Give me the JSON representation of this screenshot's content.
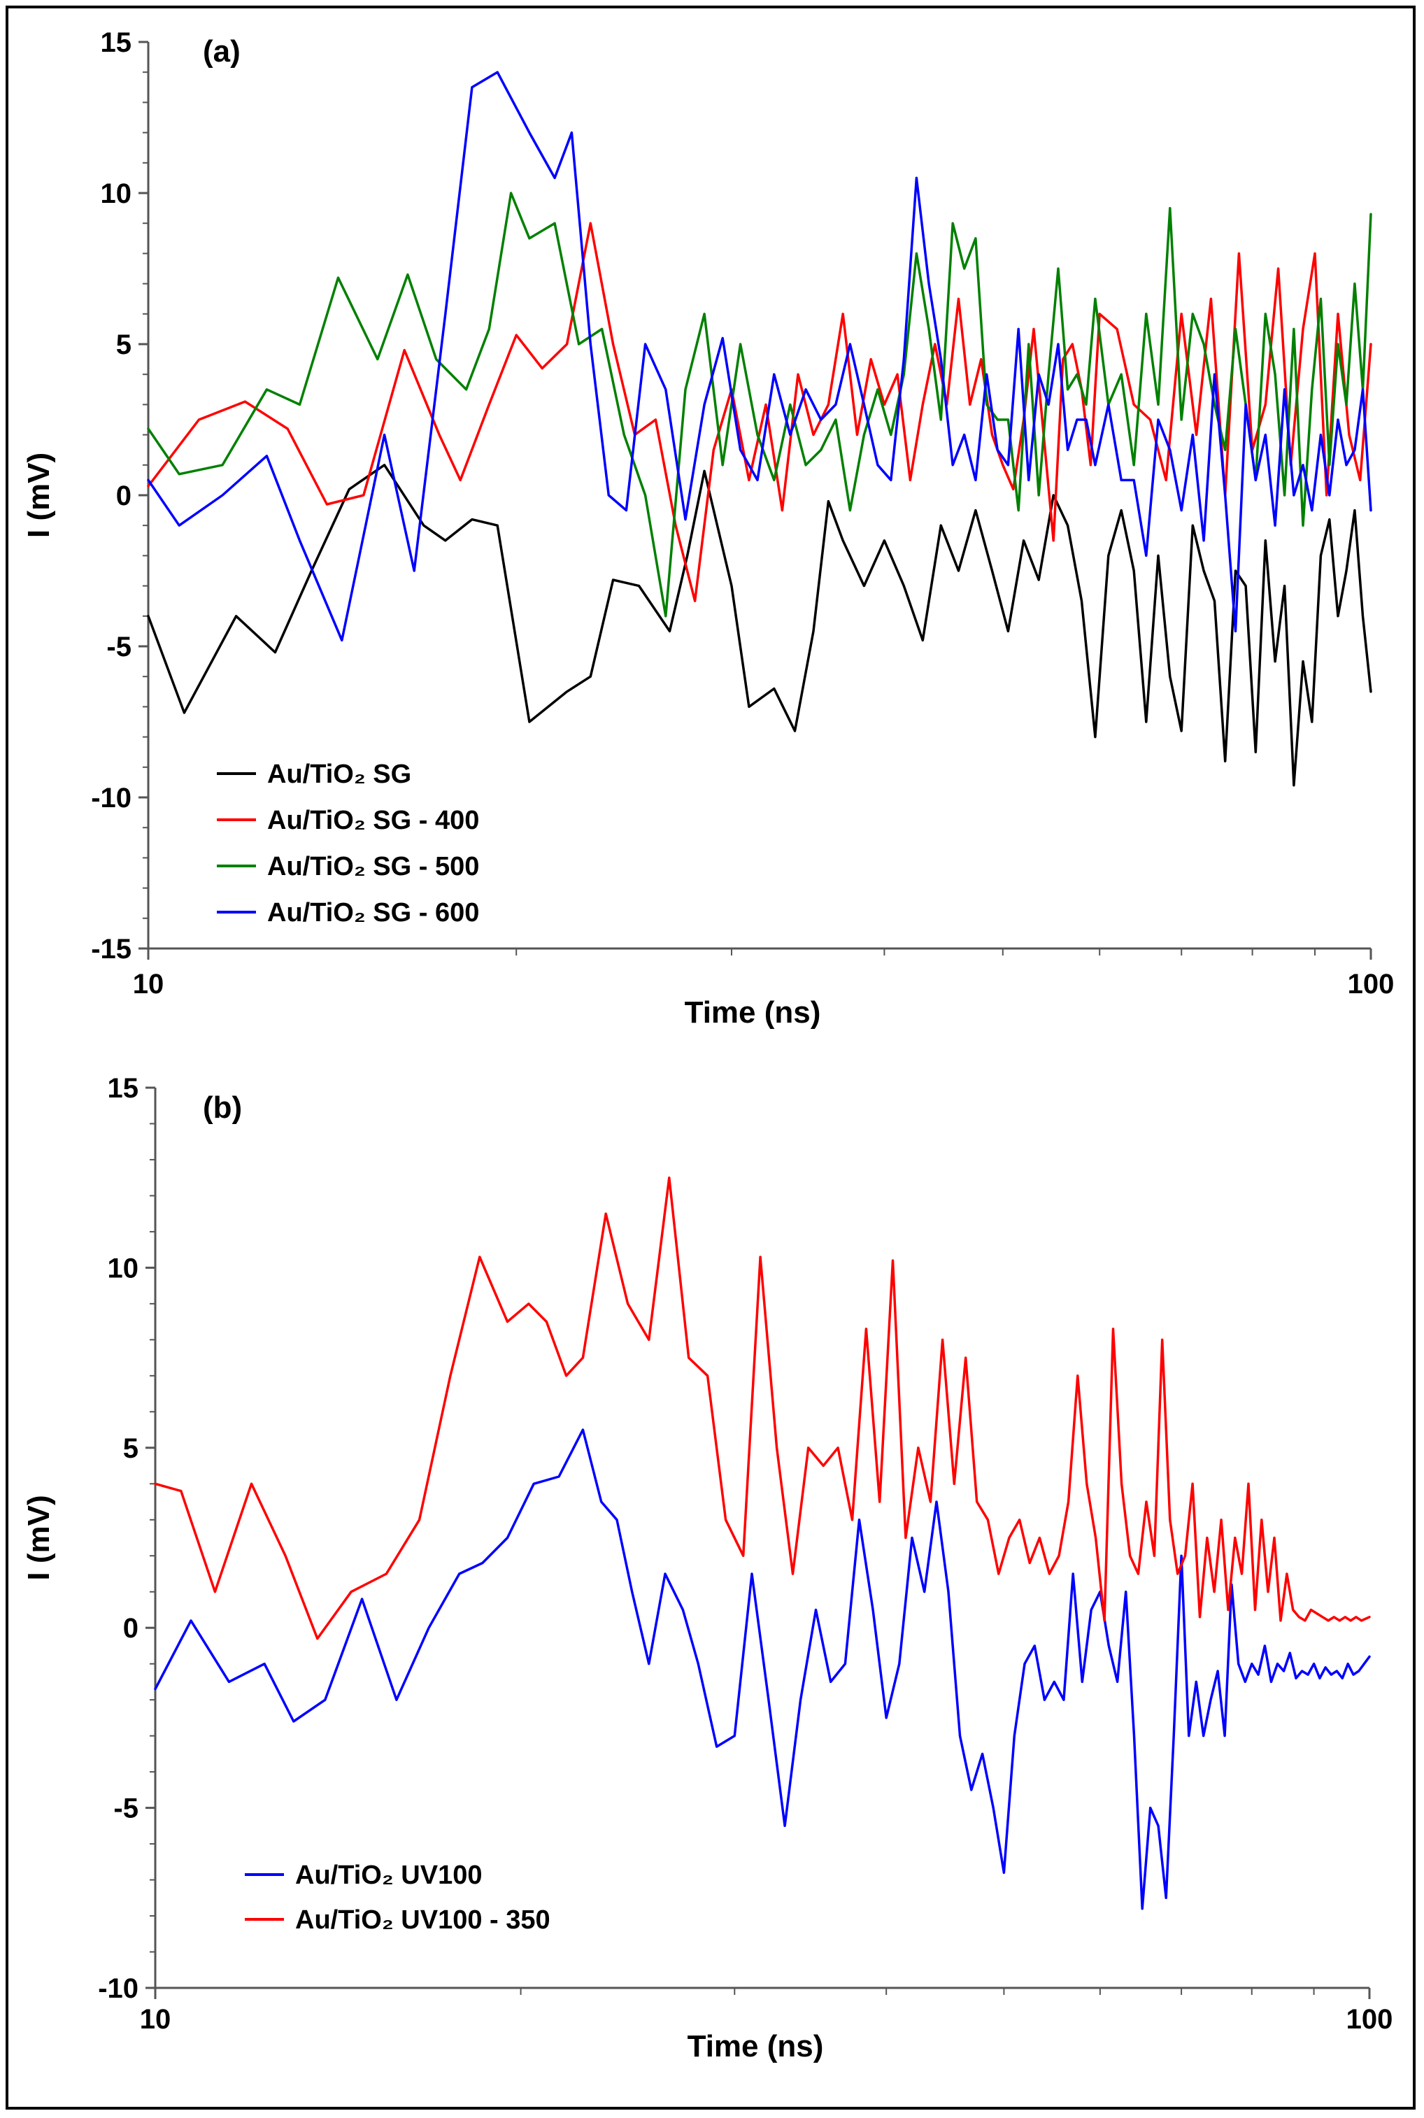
{
  "chart_data": [
    {
      "type": "line",
      "panel_label": "(a)",
      "xlabel": "Time (ns)",
      "ylabel": "I (mV)",
      "xscale": "log",
      "xlim": [
        10,
        100
      ],
      "ylim": [
        -15,
        15
      ],
      "yticks": [
        15,
        10,
        5,
        0,
        -5,
        -10,
        -15
      ],
      "ytick_labels": [
        "15",
        "10",
        "5",
        "0",
        "-5",
        "-10",
        "-15"
      ],
      "xtick_labels": [
        "10",
        "100"
      ],
      "legend_position": "bottom-left",
      "series": [
        {
          "name": "Au/TiO₂ SG",
          "color": "#000000",
          "x": [
            10,
            10.7,
            11.8,
            12.7,
            13.6,
            14.6,
            15.6,
            16.8,
            17.5,
            18.4,
            19.3,
            20.5,
            22.0,
            23.0,
            24.0,
            25.2,
            26.7,
            27.6,
            28.5,
            30.0,
            31.0,
            32.5,
            33.8,
            35.0,
            36.0,
            37.0,
            38.5,
            40.0,
            41.5,
            43.0,
            44.5,
            46.0,
            47.5,
            49.0,
            50.5,
            52.0,
            53.5,
            55.0,
            56.5,
            58.0,
            59.5,
            61.0,
            62.5,
            64.0,
            65.5,
            67.0,
            68.5,
            70.0,
            71.5,
            73.0,
            74.5,
            76.0,
            77.5,
            79.0,
            80.5,
            82.0,
            83.5,
            85.0,
            86.5,
            88.0,
            89.5,
            91.0,
            92.5,
            94.0,
            95.5,
            97.0,
            98.5,
            100
          ],
          "values": [
            -4,
            -7.2,
            -4.0,
            -5.2,
            -2.5,
            0.2,
            1.0,
            -1.0,
            -1.5,
            -0.8,
            -1.0,
            -7.5,
            -6.5,
            -6.0,
            -2.8,
            -3.0,
            -4.5,
            -2.0,
            0.8,
            -3.0,
            -7.0,
            -6.4,
            -7.8,
            -4.5,
            -0.2,
            -1.5,
            -3.0,
            -1.5,
            -3.0,
            -4.8,
            -1.0,
            -2.5,
            -0.5,
            -2.5,
            -4.5,
            -1.5,
            -2.8,
            0.0,
            -1.0,
            -3.5,
            -8.0,
            -2.0,
            -0.5,
            -2.5,
            -7.5,
            -2.0,
            -6.0,
            -7.8,
            -1.0,
            -2.5,
            -3.5,
            -8.8,
            -2.5,
            -3.0,
            -8.5,
            -1.5,
            -5.5,
            -3.0,
            -9.6,
            -5.5,
            -7.5,
            -2.0,
            -0.8,
            -4.0,
            -2.5,
            -0.5,
            -4.0,
            -6.5
          ]
        },
        {
          "name": "Au/TiO₂ SG - 400",
          "color": "#ff0000",
          "x": [
            10,
            11.0,
            12.0,
            13.0,
            14.0,
            15.0,
            16.2,
            17.3,
            18.0,
            19.0,
            20.0,
            21.0,
            22.0,
            23.0,
            24.0,
            25.0,
            26.0,
            27.0,
            28.0,
            29.0,
            30.0,
            31.0,
            32.0,
            33.0,
            34.0,
            35.0,
            36.0,
            37.0,
            38.0,
            39.0,
            40.0,
            41.0,
            42.0,
            43.0,
            44.0,
            45.0,
            46.0,
            47.0,
            48.0,
            49.0,
            50.0,
            51.0,
            52.0,
            53.0,
            54.0,
            55.0,
            56.0,
            57.0,
            58.0,
            59.0,
            60.0,
            62.0,
            64.0,
            66.0,
            68.0,
            70.0,
            72.0,
            74.0,
            76.0,
            78.0,
            80.0,
            82.0,
            84.0,
            86.0,
            88.0,
            90.0,
            92.0,
            94.0,
            96.0,
            98.0,
            100
          ],
          "values": [
            0.3,
            2.5,
            3.1,
            2.2,
            -0.3,
            0.0,
            4.8,
            2.0,
            0.5,
            3.0,
            5.3,
            4.2,
            5.0,
            9.0,
            5.0,
            2.0,
            2.5,
            -1.0,
            -3.5,
            1.5,
            3.5,
            0.5,
            3.0,
            -0.5,
            4.0,
            2.0,
            3.0,
            6.0,
            2.0,
            4.5,
            3.0,
            4.0,
            0.5,
            3.0,
            5.0,
            3.0,
            6.5,
            3.0,
            4.5,
            2.0,
            1.0,
            0.2,
            2.5,
            5.5,
            2.0,
            -1.5,
            4.5,
            5.0,
            3.5,
            1.0,
            6.0,
            5.5,
            3.0,
            2.5,
            0.5,
            6.0,
            2.0,
            6.5,
            0.0,
            8.0,
            1.5,
            3.0,
            7.5,
            1.0,
            5.5,
            8.0,
            0.0,
            6.0,
            2.0,
            0.5,
            5.0
          ]
        },
        {
          "name": "Au/TiO₂ SG - 500",
          "color": "#008000",
          "x": [
            10,
            10.6,
            11.5,
            12.5,
            13.3,
            14.3,
            15.4,
            16.3,
            17.2,
            18.2,
            19.0,
            19.8,
            20.5,
            21.5,
            22.5,
            23.5,
            24.5,
            25.5,
            26.5,
            27.5,
            28.5,
            29.5,
            30.5,
            31.5,
            32.5,
            33.5,
            34.5,
            35.5,
            36.5,
            37.5,
            38.5,
            39.5,
            40.5,
            41.5,
            42.5,
            43.5,
            44.5,
            45.5,
            46.5,
            47.5,
            48.5,
            49.5,
            50.5,
            51.5,
            52.5,
            53.5,
            54.5,
            55.5,
            56.5,
            57.5,
            58.5,
            59.5,
            61.0,
            62.5,
            64.0,
            65.5,
            67.0,
            68.5,
            70.0,
            71.5,
            73.0,
            74.5,
            76.0,
            77.5,
            79.0,
            80.5,
            82.0,
            83.5,
            85.0,
            86.5,
            88.0,
            89.5,
            91.0,
            92.5,
            94.0,
            95.5,
            97.0,
            98.5,
            100
          ],
          "values": [
            2.2,
            0.7,
            1.0,
            3.5,
            3.0,
            7.2,
            4.5,
            7.3,
            4.5,
            3.5,
            5.5,
            10.0,
            8.5,
            9.0,
            5.0,
            5.5,
            2.0,
            0.0,
            -4.0,
            3.5,
            6.0,
            1.0,
            5.0,
            2.0,
            0.5,
            3.0,
            1.0,
            1.5,
            2.5,
            -0.5,
            2.0,
            3.5,
            2.0,
            4.0,
            8.0,
            5.5,
            2.5,
            9.0,
            7.5,
            8.5,
            3.0,
            2.5,
            2.5,
            -0.5,
            5.0,
            0.0,
            4.0,
            7.5,
            3.5,
            4.0,
            3.0,
            6.5,
            3.0,
            4.0,
            1.0,
            6.0,
            3.0,
            9.5,
            2.5,
            6.0,
            5.0,
            3.0,
            1.5,
            5.5,
            3.0,
            0.5,
            6.0,
            4.0,
            0.0,
            5.5,
            -1.0,
            3.5,
            6.5,
            1.0,
            5.0,
            3.0,
            7.0,
            3.5,
            9.3
          ]
        },
        {
          "name": "Au/TiO₂ SG - 600",
          "color": "#0000ff",
          "x": [
            10,
            10.6,
            11.5,
            12.5,
            13.3,
            14.4,
            15.6,
            16.5,
            17.5,
            18.4,
            19.3,
            20.5,
            21.5,
            22.2,
            23.0,
            23.8,
            24.6,
            25.5,
            26.5,
            27.5,
            28.5,
            29.5,
            30.5,
            31.5,
            32.5,
            33.5,
            34.5,
            35.5,
            36.5,
            37.5,
            38.5,
            39.5,
            40.5,
            41.5,
            42.5,
            43.5,
            44.5,
            45.5,
            46.5,
            47.5,
            48.5,
            49.5,
            50.5,
            51.5,
            52.5,
            53.5,
            54.5,
            55.5,
            56.5,
            57.5,
            58.5,
            59.5,
            61.0,
            62.5,
            64.0,
            65.5,
            67.0,
            68.5,
            70.0,
            71.5,
            73.0,
            74.5,
            76.0,
            77.5,
            79.0,
            80.5,
            82.0,
            83.5,
            85.0,
            86.5,
            88.0,
            89.5,
            91.0,
            92.5,
            94.0,
            95.5,
            97.0,
            98.5,
            100
          ],
          "values": [
            0.5,
            -1.0,
            0.0,
            1.3,
            -1.5,
            -4.8,
            2.0,
            -2.5,
            6.0,
            13.5,
            14.0,
            12.0,
            10.5,
            12.0,
            5.0,
            0.0,
            -0.5,
            5.0,
            3.5,
            -0.8,
            3.0,
            5.2,
            1.5,
            0.5,
            4.0,
            2.0,
            3.5,
            2.5,
            3.0,
            5.0,
            3.0,
            1.0,
            0.5,
            4.5,
            10.5,
            7.0,
            4.5,
            1.0,
            2.0,
            0.5,
            4.0,
            1.5,
            1.0,
            5.5,
            0.5,
            4.0,
            3.0,
            5.0,
            1.5,
            2.5,
            2.5,
            1.0,
            3.0,
            0.5,
            0.5,
            -2.0,
            2.5,
            1.5,
            -0.5,
            2.0,
            -1.5,
            4.0,
            0.0,
            -4.5,
            3.0,
            0.5,
            2.0,
            -1.0,
            3.5,
            0.0,
            1.0,
            -0.5,
            2.0,
            0.0,
            2.5,
            1.0,
            1.5,
            3.5,
            -0.5
          ]
        }
      ]
    },
    {
      "type": "line",
      "panel_label": "(b)",
      "xlabel": "Time (ns)",
      "ylabel": "I (mV)",
      "xscale": "log",
      "xlim": [
        10,
        100
      ],
      "ylim": [
        -10,
        15
      ],
      "yticks": [
        15,
        10,
        5,
        0,
        -5,
        -10
      ],
      "ytick_labels": [
        "15",
        "10",
        "5",
        "0",
        "-5",
        "-10"
      ],
      "xtick_labels": [
        "10",
        "100"
      ],
      "legend_position": "bottom-left",
      "series": [
        {
          "name": "Au/TiO₂ UV100",
          "color": "#0000ff",
          "x": [
            10,
            10.7,
            11.5,
            12.3,
            13.0,
            13.8,
            14.8,
            15.8,
            16.8,
            17.8,
            18.6,
            19.5,
            20.5,
            21.5,
            22.5,
            23.3,
            24.0,
            24.7,
            25.5,
            26.3,
            27.2,
            28.0,
            29.0,
            30.0,
            31.0,
            32.0,
            33.0,
            34.0,
            35.0,
            36.0,
            37.0,
            38.0,
            39.0,
            40.0,
            41.0,
            42.0,
            43.0,
            44.0,
            45.0,
            46.0,
            47.0,
            48.0,
            49.0,
            50.0,
            51.0,
            52.0,
            53.0,
            54.0,
            55.0,
            56.0,
            57.0,
            58.0,
            59.0,
            60.0,
            61.0,
            62.0,
            63.0,
            64.0,
            65.0,
            66.0,
            67.0,
            68.0,
            69.0,
            70.0,
            71.0,
            72.0,
            73.0,
            74.0,
            75.0,
            76.0,
            77.0,
            78.0,
            79.0,
            80.0,
            81.0,
            82.0,
            83.0,
            84.0,
            85.0,
            86.0,
            87.0,
            88.0,
            89.0,
            90.0,
            91.0,
            92.0,
            93.0,
            94.0,
            95.0,
            96.0,
            97.0,
            98.0,
            99.0,
            100
          ],
          "values": [
            -1.7,
            0.2,
            -1.5,
            -1.0,
            -2.6,
            -2.0,
            0.8,
            -2.0,
            0.0,
            1.5,
            1.8,
            2.5,
            4.0,
            4.2,
            5.5,
            3.5,
            3.0,
            1.0,
            -1.0,
            1.5,
            0.5,
            -1.0,
            -3.3,
            -3.0,
            1.5,
            -2.0,
            -5.5,
            -2.0,
            0.5,
            -1.5,
            -1.0,
            3.0,
            0.5,
            -2.5,
            -1.0,
            2.5,
            1.0,
            3.5,
            1.0,
            -3.0,
            -4.5,
            -3.5,
            -5.0,
            -6.8,
            -3.0,
            -1.0,
            -0.5,
            -2.0,
            -1.5,
            -2.0,
            1.5,
            -1.5,
            0.5,
            1.0,
            -0.5,
            -1.5,
            1.0,
            -3.0,
            -7.8,
            -5.0,
            -5.5,
            -7.5,
            -3.0,
            2.0,
            -3.0,
            -1.5,
            -3.0,
            -2.0,
            -1.2,
            -3.0,
            1.2,
            -1.0,
            -1.5,
            -1.0,
            -1.3,
            -0.5,
            -1.5,
            -1.0,
            -1.2,
            -0.7,
            -1.4,
            -1.2,
            -1.3,
            -1.0,
            -1.4,
            -1.1,
            -1.3,
            -1.2,
            -1.4,
            -1.0,
            -1.3,
            -1.2,
            -1.0,
            -0.8
          ]
        },
        {
          "name": "Au/TiO₂ UV100 - 350",
          "color": "#ff0000",
          "x": [
            10,
            10.5,
            11.2,
            12.0,
            12.8,
            13.6,
            14.5,
            15.5,
            16.5,
            17.5,
            18.5,
            19.5,
            20.3,
            21.0,
            21.8,
            22.5,
            23.5,
            24.5,
            25.5,
            26.5,
            27.5,
            28.5,
            29.5,
            30.5,
            31.5,
            32.5,
            33.5,
            34.5,
            35.5,
            36.5,
            37.5,
            38.5,
            39.5,
            40.5,
            41.5,
            42.5,
            43.5,
            44.5,
            45.5,
            46.5,
            47.5,
            48.5,
            49.5,
            50.5,
            51.5,
            52.5,
            53.5,
            54.5,
            55.5,
            56.5,
            57.5,
            58.5,
            59.5,
            60.5,
            61.5,
            62.5,
            63.5,
            64.5,
            65.5,
            66.5,
            67.5,
            68.5,
            69.5,
            70.5,
            71.5,
            72.5,
            73.5,
            74.5,
            75.5,
            76.5,
            77.5,
            78.5,
            79.5,
            80.5,
            81.5,
            82.5,
            83.5,
            84.5,
            85.5,
            86.5,
            87.5,
            88.5,
            89.5,
            90.5,
            91.5,
            92.5,
            93.5,
            94.5,
            95.5,
            96.5,
            97.5,
            98.5,
            100
          ],
          "values": [
            4.0,
            3.8,
            1.0,
            4.0,
            2.0,
            -0.3,
            1.0,
            1.5,
            3.0,
            7.0,
            10.3,
            8.5,
            9.0,
            8.5,
            7.0,
            7.5,
            11.5,
            9.0,
            8.0,
            12.5,
            7.5,
            7.0,
            3.0,
            2.0,
            10.3,
            5.0,
            1.5,
            5.0,
            4.5,
            5.0,
            3.0,
            8.3,
            3.5,
            10.2,
            2.5,
            5.0,
            3.5,
            8.0,
            4.0,
            7.5,
            3.5,
            3.0,
            1.5,
            2.5,
            3.0,
            1.8,
            2.5,
            1.5,
            2.0,
            3.5,
            7.0,
            4.0,
            2.5,
            0.2,
            8.3,
            4.0,
            2.0,
            1.5,
            3.5,
            2.0,
            8.0,
            3.0,
            1.5,
            2.0,
            4.0,
            0.3,
            2.5,
            1.0,
            3.0,
            0.5,
            2.5,
            1.5,
            4.0,
            0.5,
            3.0,
            1.0,
            2.5,
            0.2,
            1.5,
            0.5,
            0.3,
            0.2,
            0.5,
            0.4,
            0.3,
            0.2,
            0.3,
            0.2,
            0.3,
            0.2,
            0.3,
            0.2,
            0.3
          ]
        }
      ]
    }
  ]
}
